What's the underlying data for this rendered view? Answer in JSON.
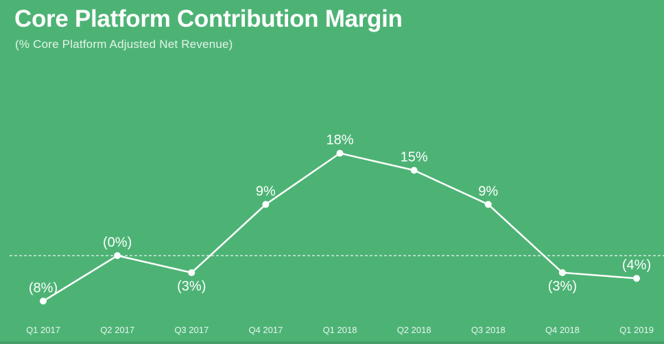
{
  "header": {
    "title": "Core Platform Contribution Margin",
    "subtitle": "(% Core Platform Adjusted Net Revenue)"
  },
  "colors": {
    "background": "#4DB375",
    "bottom_strip_overlay": "rgba(0,0,0,0.10)",
    "line": "#FFFFFF",
    "marker": "#FFFFFF",
    "zero_line": "#FFFFFF",
    "value_label": "#FFFFFF",
    "axis_label": "#FFFFFF",
    "title_text": "#FFFFFF"
  },
  "chart_data": {
    "type": "line",
    "title": "Core Platform Contribution Margin",
    "subtitle": "(% Core Platform Adjusted Net Revenue)",
    "categories": [
      "Q1 2017",
      "Q2 2017",
      "Q3 2017",
      "Q4 2017",
      "Q1 2018",
      "Q2 2018",
      "Q3 2018",
      "Q4 2018",
      "Q1 2019"
    ],
    "values": [
      -8,
      0,
      -3,
      9,
      18,
      15,
      9,
      -3,
      -4
    ],
    "point_labels": [
      "(8%)",
      "(0%)",
      "(3%)",
      "9%",
      "18%",
      "15%",
      "9%",
      "(3%)",
      "(4%)"
    ],
    "label_positions": [
      "above",
      "above",
      "below",
      "above",
      "above",
      "above",
      "above",
      "below",
      "above"
    ],
    "unit": "percent",
    "xlabel": "",
    "ylabel": "",
    "ylim": [
      -14,
      22
    ],
    "zero_line": {
      "value": 0,
      "style": "dashed"
    },
    "grid": false,
    "legend": false,
    "single_series": true
  }
}
